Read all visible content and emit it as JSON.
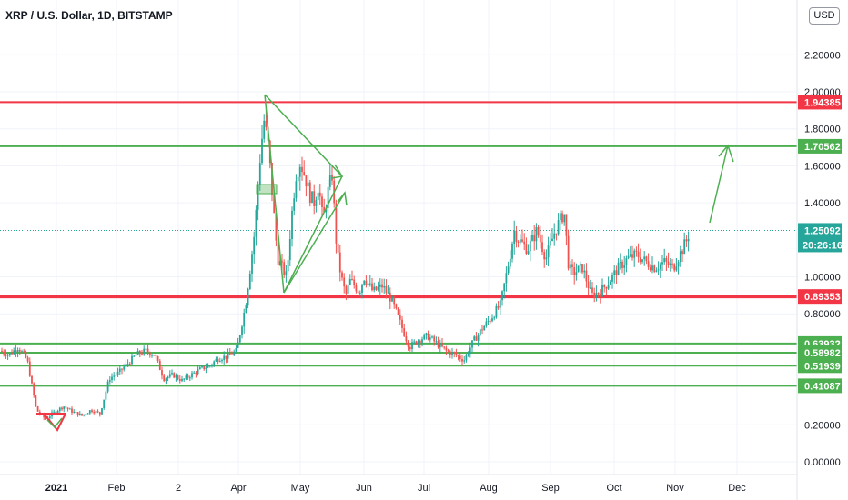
{
  "header": {
    "title": "XRP / U.S. Dollar, 1D, BITSTAMP",
    "currency": "USD"
  },
  "colors": {
    "up": "#26a69a",
    "down": "#ef5350",
    "resistance": "#f23645",
    "support": "#4caf50",
    "price_badge": "#26a69a",
    "pattern": "#4caf50"
  },
  "chart_data": {
    "type": "candlestick",
    "y_axis_ticks": [
      "2.20000",
      "2.00000",
      "1.80000",
      "1.60000",
      "1.40000",
      "1.00000",
      "0.80000",
      "0.20000",
      "0.00000"
    ],
    "x_axis_ticks": [
      "2021",
      "Feb",
      "2",
      "Apr",
      "May",
      "Jun",
      "Jul",
      "Aug",
      "Sep",
      "Oct",
      "Nov",
      "Dec"
    ],
    "ylim": [
      0.0,
      2.45
    ],
    "horizontal_levels": [
      {
        "label": "1.94385",
        "value": 1.94385,
        "color": "#f23645"
      },
      {
        "label": "1.70562",
        "value": 1.70562,
        "color": "#4caf50"
      },
      {
        "label": "0.89353",
        "value": 0.89353,
        "color": "#f23645"
      },
      {
        "label": "0.63932",
        "value": 0.63932,
        "color": "#4caf50"
      },
      {
        "label": "0.58982",
        "value": 0.58982,
        "color": "#4caf50"
      },
      {
        "label": "0.51939",
        "value": 0.51939,
        "color": "#4caf50"
      },
      {
        "label": "0.41087",
        "value": 0.41087,
        "color": "#4caf50"
      }
    ],
    "last_price": {
      "value": 1.25092,
      "label": "1.25092",
      "countdown": "20:26:16"
    },
    "price_anchors": [
      [
        0,
        0.6
      ],
      [
        10,
        0.58
      ],
      [
        20,
        0.62
      ],
      [
        30,
        0.55
      ],
      [
        40,
        0.28
      ],
      [
        50,
        0.23
      ],
      [
        60,
        0.27
      ],
      [
        70,
        0.3
      ],
      [
        80,
        0.27
      ],
      [
        90,
        0.25
      ],
      [
        100,
        0.28
      ],
      [
        110,
        0.26
      ],
      [
        120,
        0.45
      ],
      [
        130,
        0.48
      ],
      [
        140,
        0.53
      ],
      [
        150,
        0.58
      ],
      [
        160,
        0.6
      ],
      [
        170,
        0.58
      ],
      [
        180,
        0.45
      ],
      [
        190,
        0.47
      ],
      [
        200,
        0.44
      ],
      [
        210,
        0.47
      ],
      [
        220,
        0.5
      ],
      [
        230,
        0.52
      ],
      [
        240,
        0.56
      ],
      [
        250,
        0.57
      ],
      [
        260,
        0.6
      ],
      [
        270,
        0.85
      ],
      [
        275,
        1.05
      ],
      [
        280,
        1.25
      ],
      [
        285,
        1.6
      ],
      [
        290,
        1.85
      ],
      [
        295,
        1.7
      ],
      [
        300,
        1.4
      ],
      [
        305,
        1.1
      ],
      [
        310,
        1.05
      ],
      [
        315,
        1.0
      ],
      [
        320,
        1.3
      ],
      [
        325,
        1.55
      ],
      [
        330,
        1.62
      ],
      [
        335,
        1.55
      ],
      [
        340,
        1.45
      ],
      [
        345,
        1.4
      ],
      [
        350,
        1.5
      ],
      [
        355,
        1.3
      ],
      [
        360,
        1.45
      ],
      [
        365,
        1.55
      ],
      [
        370,
        1.15
      ],
      [
        375,
        1.0
      ],
      [
        380,
        0.9
      ],
      [
        385,
        0.98
      ],
      [
        390,
        0.95
      ],
      [
        395,
        0.92
      ],
      [
        400,
        1.0
      ],
      [
        410,
        0.92
      ],
      [
        420,
        0.95
      ],
      [
        430,
        0.88
      ],
      [
        440,
        0.75
      ],
      [
        450,
        0.62
      ],
      [
        460,
        0.66
      ],
      [
        470,
        0.68
      ],
      [
        480,
        0.64
      ],
      [
        490,
        0.6
      ],
      [
        500,
        0.58
      ],
      [
        510,
        0.55
      ],
      [
        520,
        0.65
      ],
      [
        530,
        0.72
      ],
      [
        540,
        0.78
      ],
      [
        550,
        0.85
      ],
      [
        560,
        1.1
      ],
      [
        565,
        1.25
      ],
      [
        570,
        1.2
      ],
      [
        580,
        1.15
      ],
      [
        590,
        1.25
      ],
      [
        600,
        1.1
      ],
      [
        610,
        1.25
      ],
      [
        620,
        1.35
      ],
      [
        625,
        1.05
      ],
      [
        630,
        1.02
      ],
      [
        640,
        1.05
      ],
      [
        650,
        0.9
      ],
      [
        660,
        0.92
      ],
      [
        670,
        0.98
      ],
      [
        680,
        1.05
      ],
      [
        690,
        1.1
      ],
      [
        700,
        1.12
      ],
      [
        710,
        1.08
      ],
      [
        720,
        1.05
      ],
      [
        730,
        1.08
      ],
      [
        740,
        1.05
      ],
      [
        750,
        1.15
      ],
      [
        755,
        1.2
      ],
      [
        758,
        1.25
      ]
    ]
  }
}
